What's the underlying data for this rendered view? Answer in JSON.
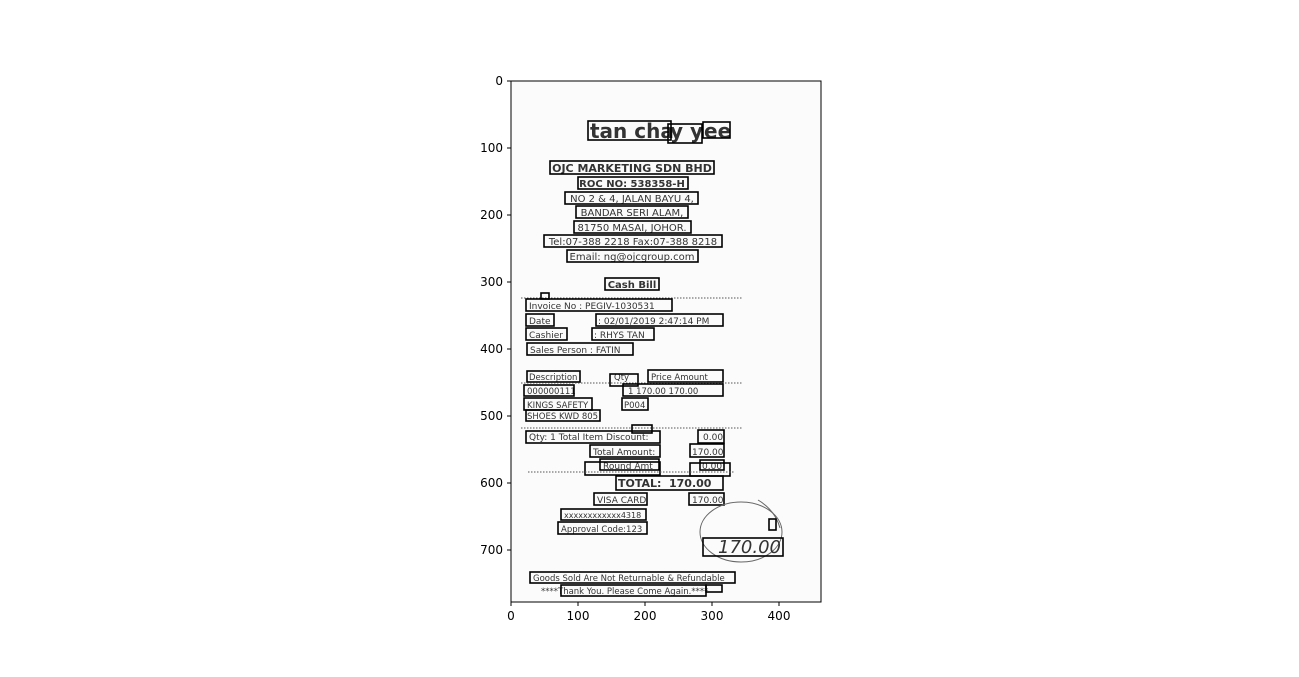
{
  "receipt": {
    "name_parts": [
      "tan cha",
      "y y",
      "ee"
    ],
    "company": "OJC MARKETING SDN BHD",
    "roc": "ROC NO: 538358-H",
    "address": [
      "NO 2 & 4, JALAN BAYU 4,",
      "BANDAR SERI ALAM,",
      "81750 MASAI, JOHOR."
    ],
    "tel_fax": "Tel:07-388 2218 Fax:07-388 8218",
    "email": "Email: ng@ojcgroup.com",
    "doc_type": "Cash Bill",
    "invoice": "Invoice No    : PEGIV-1030531",
    "date_label": "Date",
    "date_value": ": 02/01/2019 2:47:14 PM",
    "cashier_label": "Cashier",
    "cashier_value": ": RHYS TAN",
    "sales_person": "Sales Person : FATIN",
    "col_description": "Description",
    "col_qty": "Qty",
    "col_price_amount": "Price     Amount",
    "item_code": "000000111",
    "item_line": "1    170.00      170.00",
    "item_name": "KINGS SAFETY",
    "item_name2": "SHOES KWD 805",
    "item_model": "P004",
    "qty_total_discount": "Qty: 1  Total Item Discount:",
    "discount_value": "0.00",
    "total_amount_label": "Total Amount:",
    "total_amount_value": "170.00",
    "rounding_label": "Round Amt",
    "rounding_value": "0.00",
    "total_label": "TOTAL:",
    "total_value": "170.00",
    "payment_method": "VISA CARD",
    "payment_value": "170.00",
    "card_number": "xxxxxxxxxxxx4318",
    "approval": "Approval Code:123",
    "handwritten": "170.00",
    "footer1": "Goods Sold Are Not Returnable & Refundable",
    "footer2": "****Thank You. Please Come Again.****"
  },
  "axes": {
    "x_ticks": [
      "0",
      "100",
      "200",
      "300",
      "400"
    ],
    "y_ticks": [
      "0",
      "100",
      "200",
      "300",
      "400",
      "500",
      "600",
      "700"
    ]
  },
  "colors": {
    "box": "#000000",
    "highlight_blue": "#0000ff",
    "highlight_cyan": "#00ffff"
  }
}
